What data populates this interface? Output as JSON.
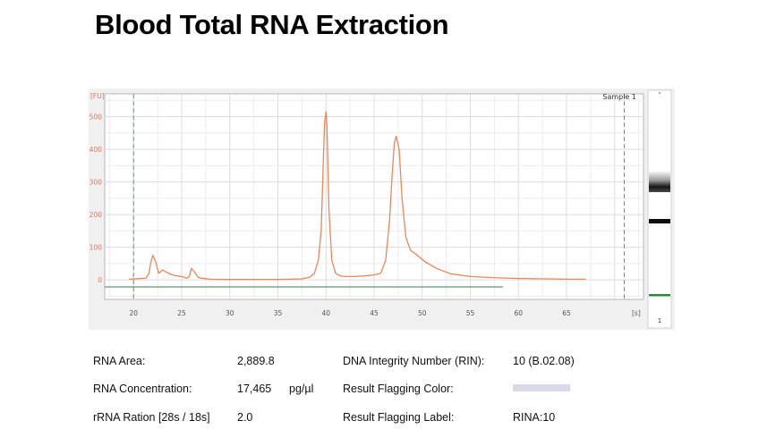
{
  "page": {
    "title": "Blood Total RNA Extraction"
  },
  "chart_data": {
    "type": "line",
    "title": "",
    "sample_label": "Sample 1",
    "ylabel": "[FU]",
    "xlabel": "[s]",
    "xlim": [
      17,
      73
    ],
    "ylim": [
      -60,
      570
    ],
    "x_ticks": [
      20,
      25,
      30,
      35,
      40,
      45,
      50,
      55,
      60,
      65
    ],
    "y_ticks": [
      0,
      100,
      200,
      300,
      400,
      500
    ],
    "marker_lines_x": [
      20,
      71
    ],
    "grid": true,
    "series": [
      {
        "color": "#e8865c",
        "x": [
          19.5,
          21.3,
          21.6,
          21.8,
          22.0,
          22.3,
          22.6,
          23.0,
          23.5,
          24.0,
          24.5,
          25.0,
          25.5,
          25.8,
          26.0,
          26.3,
          26.7,
          27.0,
          28.0,
          30.0,
          35.0,
          37.5,
          38.3,
          38.8,
          39.2,
          39.5,
          39.7,
          39.85,
          40.0,
          40.1,
          40.3,
          40.6,
          41.0,
          41.5,
          42.0,
          43.0,
          44.0,
          45.0,
          45.7,
          46.2,
          46.6,
          46.9,
          47.1,
          47.3,
          47.6,
          47.9,
          48.3,
          48.8,
          49.5,
          50.3,
          51.5,
          53.0,
          55.0,
          57.0,
          60.0,
          63.0,
          65.0,
          67.0
        ],
        "y": [
          2,
          5,
          20,
          55,
          75,
          55,
          20,
          30,
          22,
          15,
          12,
          10,
          5,
          10,
          35,
          25,
          8,
          5,
          2,
          1,
          1,
          3,
          8,
          20,
          60,
          150,
          340,
          480,
          515,
          470,
          220,
          60,
          20,
          12,
          10,
          10,
          12,
          15,
          20,
          60,
          180,
          330,
          420,
          440,
          400,
          250,
          130,
          90,
          75,
          55,
          35,
          18,
          10,
          7,
          4,
          3,
          2,
          2
        ]
      }
    ]
  },
  "gel": {
    "label": "1"
  },
  "results": {
    "rna_area": {
      "label": "RNA Area:",
      "value": "2,889.8"
    },
    "rna_concentration": {
      "label": "RNA Concentration:",
      "value": "17,465",
      "unit": "pg/µl"
    },
    "rrna_ratio": {
      "label": "rRNA Ration [28s / 18s]",
      "value": "2.0"
    },
    "rin": {
      "label": "DNA Integrity Number (RIN):",
      "value": "10  (B.02.08)"
    },
    "flag_color": {
      "label": "Result Flagging Color:",
      "color": "#d9d9ec"
    },
    "flag_label": {
      "label": "Result Flagging Label:",
      "value": "RINA:10"
    }
  }
}
